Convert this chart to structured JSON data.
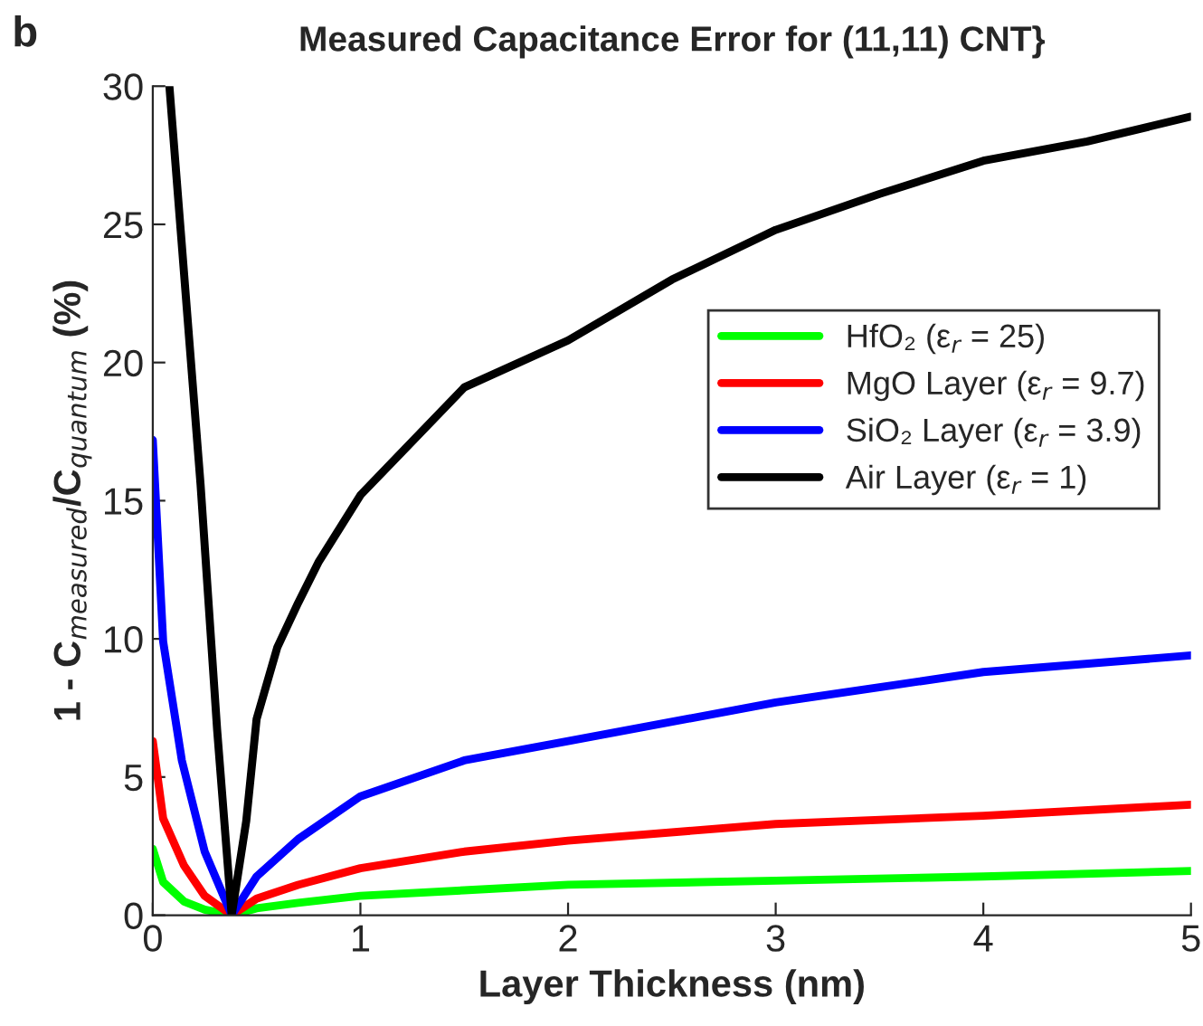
{
  "chart_data": {
    "type": "line",
    "title": "Measured Capacitance Error for (11,11) CNT}",
    "xlabel": "Layer Thickness (nm)",
    "ylabel": "1 - C$_{measured}$/C$_{quantum}$ (%)",
    "annotations": [
      "b"
    ],
    "xlim": [
      0,
      5
    ],
    "xticks": [
      0,
      1,
      2,
      3,
      4,
      5
    ],
    "ylim": [
      0,
      30
    ],
    "yticks": [
      0,
      5,
      10,
      15,
      20,
      25,
      30
    ],
    "grid": false,
    "legend": "right",
    "marker": "none",
    "line_style": "solid",
    "series": [
      {
        "name": "HfO₂ (ε$_{r}$ = 25)",
        "color": "#00ff00",
        "x": [
          0,
          0.05,
          0.15,
          0.25,
          0.38,
          0.5,
          0.7,
          1,
          1.5,
          2,
          3,
          4,
          5
        ],
        "values": [
          2.4,
          1.2,
          0.5,
          0.2,
          0,
          0.25,
          0.45,
          0.7,
          0.9,
          1.1,
          1.25,
          1.4,
          1.6
        ]
      },
      {
        "name": "MgO Layer (ε$_{r}$ = 9.7)",
        "color": "#ff0000",
        "x": [
          0,
          0.05,
          0.15,
          0.25,
          0.38,
          0.5,
          0.7,
          1,
          1.5,
          2,
          3,
          4,
          5
        ],
        "values": [
          6.3,
          3.5,
          1.8,
          0.7,
          0,
          0.6,
          1.1,
          1.7,
          2.3,
          2.7,
          3.3,
          3.6,
          4.0
        ]
      },
      {
        "name": "SiO₂ Layer (ε$_{r}$ = 3.9)",
        "color": "#0000ff",
        "x": [
          0,
          0.05,
          0.14,
          0.25,
          0.38,
          0.5,
          0.7,
          1,
          1.5,
          2,
          3,
          4,
          5
        ],
        "values": [
          17.2,
          9.9,
          5.6,
          2.3,
          0,
          1.4,
          2.75,
          4.3,
          5.6,
          6.3,
          7.7,
          8.8,
          9.4
        ]
      },
      {
        "name": "Air Layer (ε$_{r}$ = 1)",
        "color": "#000000",
        "x": [
          0.08,
          0.23,
          0.31,
          0.38,
          0.45,
          0.5,
          0.6,
          0.7,
          0.8,
          1,
          1.5,
          2,
          2.5,
          3,
          3.5,
          4,
          4.5,
          5
        ],
        "values": [
          30,
          15.6,
          6.7,
          0,
          3.4,
          7.1,
          9.7,
          11.3,
          12.8,
          15.2,
          19.1,
          20.8,
          23.0,
          24.8,
          26.1,
          27.3,
          28.0,
          28.9
        ]
      }
    ]
  }
}
